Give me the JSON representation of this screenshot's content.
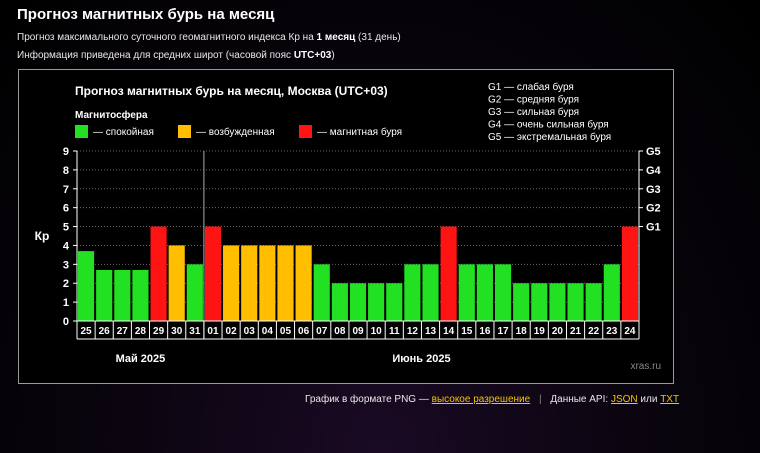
{
  "header": {
    "title": "Прогноз магнитных бурь на месяц",
    "subtitle1_pre": "Прогноз максимального суточного геомагнитного индекса Кр на",
    "subtitle1_bold": "1 месяц",
    "subtitle1_post": "(31 день)",
    "subtitle2_pre": "Информация приведена для средних широт (часовой пояс",
    "subtitle2_bold": "UTC+03",
    "subtitle2_post": ")"
  },
  "colors": {
    "calm": "#22e022",
    "excited": "#ffbe00",
    "storm": "#ff1414",
    "grid": "#666666",
    "text": "#ffffff"
  },
  "chart_data": {
    "type": "bar",
    "title": "Прогноз магнитных бурь на месяц, Москва (UTC+03)",
    "ylabel": "Кр",
    "ylim": [
      0,
      9
    ],
    "yticks": [
      "0",
      "1",
      "2",
      "3",
      "4",
      "5",
      "6",
      "7",
      "8",
      "9"
    ],
    "right_ticks": [
      {
        "value": 5,
        "label": "G1"
      },
      {
        "value": 6,
        "label": "G2"
      },
      {
        "value": 7,
        "label": "G3"
      },
      {
        "value": 8,
        "label": "G4"
      },
      {
        "value": 9,
        "label": "G5"
      }
    ],
    "legend_heading": "Магнитосфера",
    "legend": [
      {
        "key": "calm",
        "label": "— спокойная"
      },
      {
        "key": "excited",
        "label": "— возбужденная"
      },
      {
        "key": "storm",
        "label": "— магнитная буря"
      }
    ],
    "storm_scale": [
      "G1 — слабая буря",
      "G2 — средняя буря",
      "G3 — сильная буря",
      "G4 — очень сильная буря",
      "G5 — экстремальная буря"
    ],
    "categories": [
      "25",
      "26",
      "27",
      "28",
      "29",
      "30",
      "31",
      "01",
      "02",
      "03",
      "04",
      "05",
      "06",
      "07",
      "08",
      "09",
      "10",
      "11",
      "12",
      "13",
      "14",
      "15",
      "16",
      "17",
      "18",
      "19",
      "20",
      "21",
      "22",
      "23",
      "24"
    ],
    "values": [
      3.7,
      2.7,
      2.7,
      2.7,
      5,
      4,
      3,
      5,
      4,
      4,
      4,
      4,
      4,
      3,
      2,
      2,
      2,
      2,
      3,
      3,
      5,
      3,
      3,
      3,
      2,
      2,
      2,
      2,
      2,
      3,
      5
    ],
    "levels": [
      "calm",
      "calm",
      "calm",
      "calm",
      "storm",
      "excited",
      "calm",
      "storm",
      "excited",
      "excited",
      "excited",
      "excited",
      "excited",
      "calm",
      "calm",
      "calm",
      "calm",
      "calm",
      "calm",
      "calm",
      "storm",
      "calm",
      "calm",
      "calm",
      "calm",
      "calm",
      "calm",
      "calm",
      "calm",
      "calm",
      "storm"
    ],
    "months": [
      {
        "label": "Май 2025",
        "start": 0,
        "end": 6
      },
      {
        "label": "Июнь 2025",
        "start": 7,
        "end": 30
      }
    ],
    "watermark": "xras.ru"
  },
  "footer": {
    "text": "График в формате PNG —",
    "hires_link": "высокое разрешение",
    "api_text": "Данные API:",
    "json_link": "JSON",
    "or_text": "или",
    "txt_link": "TXT"
  }
}
